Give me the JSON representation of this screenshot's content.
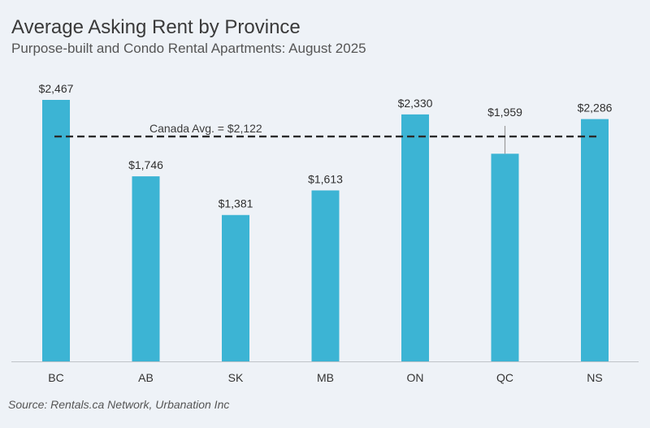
{
  "header": {
    "title": "Average Asking Rent by Province",
    "subtitle": "Purpose-built and Condo Rental Apartments: August 2025"
  },
  "footer": {
    "source": "Source: Rentals.ca Network, Urbanation Inc"
  },
  "colors": {
    "bar": "#3cb4d4",
    "reference_line": "#2b2b2b",
    "axis": "#bfc3c8",
    "error_bar": "#9a9a9a",
    "background": "#eef2f7"
  },
  "chart_data": {
    "type": "bar",
    "title": "Average Asking Rent by Province",
    "subtitle": "Purpose-built and Condo Rental Apartments: August 2025",
    "xlabel": "",
    "ylabel": "",
    "categories": [
      "BC",
      "AB",
      "SK",
      "MB",
      "ON",
      "QC",
      "NS"
    ],
    "values": [
      2467,
      1746,
      1381,
      1613,
      2330,
      1959,
      2286
    ],
    "value_labels": [
      "$2,467",
      "$1,746",
      "$1,381",
      "$1,613",
      "$2,330",
      "$1,959",
      "$2,286"
    ],
    "ylim": [
      0,
      2467
    ],
    "grid": false,
    "legend": "none",
    "reference_line": {
      "value": 2122,
      "label": "Canada Avg. = $2,122",
      "style": "dashed"
    },
    "error_bar": {
      "category": "QC",
      "upper": 2222
    }
  }
}
